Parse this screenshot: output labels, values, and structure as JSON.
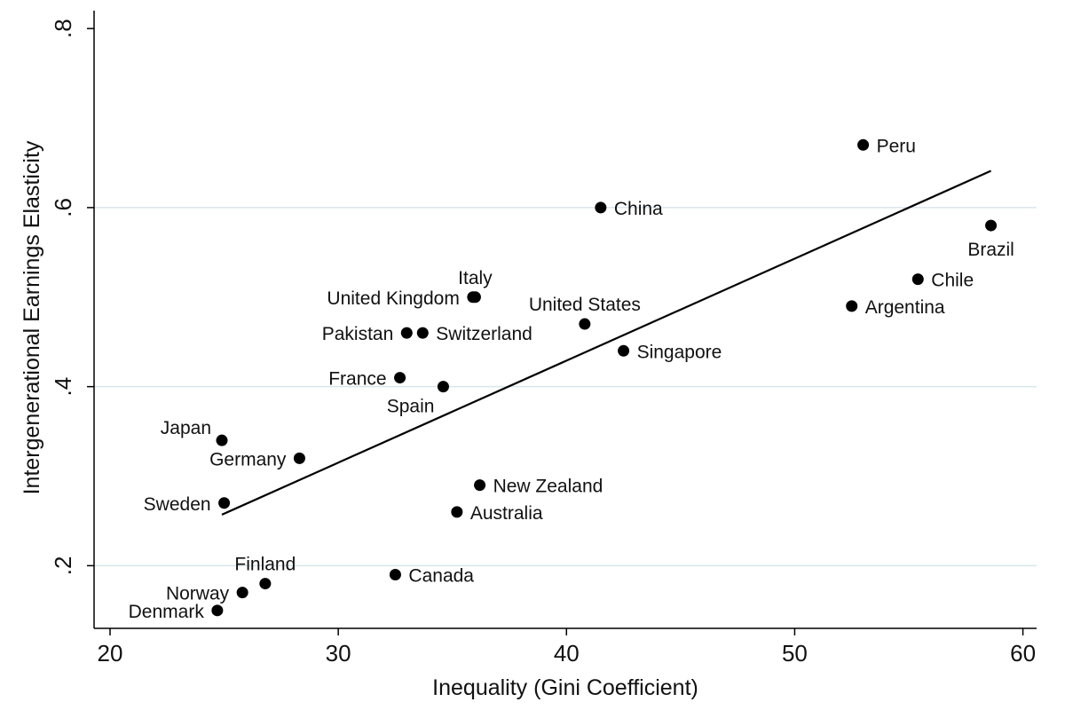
{
  "chart_data": {
    "type": "scatter",
    "title": "",
    "xlabel": "Inequality (Gini Coefficient)",
    "ylabel": "Intergenerational Earnings Elasticity",
    "xlim": [
      19.3,
      60.6
    ],
    "ylim": [
      0.13,
      0.82
    ],
    "x_ticks": [
      20,
      30,
      40,
      50,
      60
    ],
    "x_tick_labels": [
      "20",
      "30",
      "40",
      "50",
      "60"
    ],
    "y_ticks": [
      0.2,
      0.4,
      0.6,
      0.8
    ],
    "y_tick_labels": [
      ".2",
      ".4",
      ".6",
      ".8"
    ],
    "grid": "horizontal",
    "points": [
      {
        "label": "Peru",
        "x": 53.0,
        "y": 0.67,
        "label_pos": "right"
      },
      {
        "label": "China",
        "x": 41.5,
        "y": 0.6,
        "label_pos": "right"
      },
      {
        "label": "Brazil",
        "x": 58.6,
        "y": 0.58,
        "label_pos": "below"
      },
      {
        "label": "Chile",
        "x": 55.4,
        "y": 0.52,
        "label_pos": "right"
      },
      {
        "label": "Argentina",
        "x": 52.5,
        "y": 0.49,
        "label_pos": "right"
      },
      {
        "label": "Italy",
        "x": 36.0,
        "y": 0.5,
        "label_pos": "above"
      },
      {
        "label": "United Kingdom",
        "x": 35.9,
        "y": 0.5,
        "label_pos": "left"
      },
      {
        "label": "United States",
        "x": 40.8,
        "y": 0.47,
        "label_pos": "above"
      },
      {
        "label": "Pakistan",
        "x": 33.0,
        "y": 0.46,
        "label_pos": "left"
      },
      {
        "label": "Switzerland",
        "x": 33.7,
        "y": 0.46,
        "label_pos": "right"
      },
      {
        "label": "Singapore",
        "x": 42.5,
        "y": 0.44,
        "label_pos": "right"
      },
      {
        "label": "France",
        "x": 32.7,
        "y": 0.41,
        "label_pos": "left"
      },
      {
        "label": "Spain",
        "x": 34.6,
        "y": 0.4,
        "label_pos": "below-left"
      },
      {
        "label": "Japan",
        "x": 24.9,
        "y": 0.34,
        "label_pos": "above-left"
      },
      {
        "label": "Germany",
        "x": 28.3,
        "y": 0.32,
        "label_pos": "left"
      },
      {
        "label": "New Zealand",
        "x": 36.2,
        "y": 0.29,
        "label_pos": "right"
      },
      {
        "label": "Sweden",
        "x": 25.0,
        "y": 0.27,
        "label_pos": "left"
      },
      {
        "label": "Australia",
        "x": 35.2,
        "y": 0.26,
        "label_pos": "right"
      },
      {
        "label": "Canada",
        "x": 32.5,
        "y": 0.19,
        "label_pos": "right"
      },
      {
        "label": "Finland",
        "x": 26.8,
        "y": 0.18,
        "label_pos": "above"
      },
      {
        "label": "Norway",
        "x": 25.8,
        "y": 0.17,
        "label_pos": "left"
      },
      {
        "label": "Denmark",
        "x": 24.7,
        "y": 0.15,
        "label_pos": "left"
      }
    ],
    "fit_line": {
      "x": [
        24.9,
        58.6
      ],
      "y": [
        0.257,
        0.641
      ]
    }
  }
}
